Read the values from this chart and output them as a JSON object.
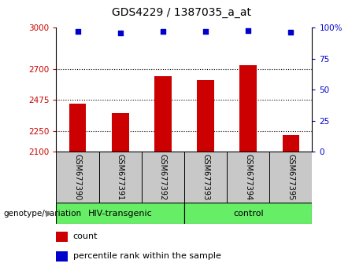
{
  "title": "GDS4229 / 1387035_a_at",
  "categories": [
    "GSM677390",
    "GSM677391",
    "GSM677392",
    "GSM677393",
    "GSM677394",
    "GSM677395"
  ],
  "bar_values": [
    2450,
    2380,
    2650,
    2620,
    2730,
    2220
  ],
  "percentile_values": [
    97,
    96,
    97,
    97,
    97.5,
    96.5
  ],
  "ylim_left": [
    2100,
    3000
  ],
  "ylim_right": [
    0,
    100
  ],
  "yticks_left": [
    2100,
    2250,
    2475,
    2700,
    3000
  ],
  "ytick_labels_left": [
    "2100",
    "2250",
    "2475",
    "2700",
    "3000"
  ],
  "yticks_right": [
    0,
    25,
    50,
    75,
    100
  ],
  "ytick_labels_right": [
    "0",
    "25",
    "50",
    "75",
    "100%"
  ],
  "hlines": [
    2250,
    2475,
    2700
  ],
  "bar_color": "#cc0000",
  "dot_color": "#0000cc",
  "group1_label": "HIV-transgenic",
  "group2_label": "control",
  "xlabel": "genotype/variation",
  "legend_count_label": "count",
  "legend_percentile_label": "percentile rank within the sample",
  "tick_area_bg": "#c8c8c8",
  "group_bar_bg": "#66ee66",
  "bar_width": 0.4
}
